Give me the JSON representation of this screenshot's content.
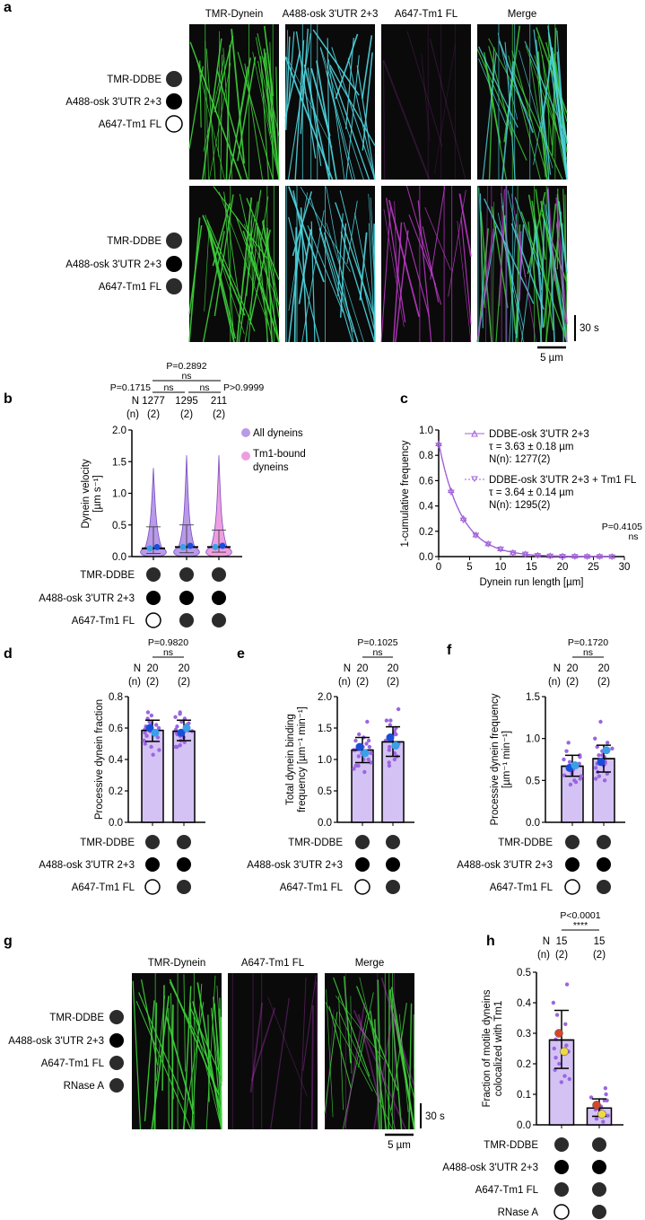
{
  "panels": {
    "a": "a",
    "b": "b",
    "c": "c",
    "d": "d",
    "e": "e",
    "f": "f",
    "g": "g",
    "h": "h"
  },
  "panel_a": {
    "channels": [
      "TMR-Dynein",
      "A488-osk 3'UTR 2+3",
      "A647-Tm1 FL",
      "Merge"
    ],
    "rows": [
      {
        "labels": [
          "TMR-DDBE",
          "A488-osk 3'UTR 2+3",
          "A647-Tm1 FL"
        ],
        "states": [
          "gray",
          "black",
          "open"
        ]
      },
      {
        "labels": [
          "TMR-DDBE",
          "A488-osk 3'UTR 2+3",
          "A647-Tm1 FL"
        ],
        "states": [
          "gray",
          "black",
          "gray"
        ]
      }
    ],
    "scale_time": "30 s",
    "scale_length": "5 µm",
    "colors": {
      "green": "#3ed23a",
      "cyan": "#4fd6e0",
      "magenta": "#c43ad0"
    }
  },
  "conditions_label": [
    "TMR-DDBE",
    "A488-osk 3'UTR 2+3",
    "A647-Tm1 FL",
    "RNase A"
  ],
  "chart_data": [
    {
      "id": "b",
      "type": "violin",
      "ylabel": "Dynein velocity",
      "ylabel2": "[µm s⁻¹]",
      "ylim": [
        0,
        2.0
      ],
      "yticks": [
        "0.0",
        "0.5",
        "1.0",
        "1.5",
        "2.0"
      ],
      "N": [
        "1277",
        "1295",
        "211"
      ],
      "n": [
        "(2)",
        "(2)",
        "(2)"
      ],
      "N_label": "N",
      "n_label": "(n)",
      "medians": [
        0.13,
        0.15,
        0.15
      ],
      "upper": [
        0.47,
        0.5,
        0.42
      ],
      "lower": [
        0.05,
        0.06,
        0.07
      ],
      "max": [
        1.4,
        1.6,
        1.6
      ],
      "violin_colors": [
        "#b89ae8",
        "#b89ae8",
        "#ee9ee0"
      ],
      "replicate_means": [
        [
          0.13,
          0.15
        ],
        [
          0.15,
          0.17
        ],
        [
          0.15,
          0.17
        ]
      ],
      "legend": [
        "All dyneins",
        "Tm1-bound dyneins"
      ],
      "stats": [
        {
          "p": "P=0.2892",
          "sig": "ns"
        },
        {
          "p": "P=0.1715",
          "sig": "ns"
        },
        {
          "p": "P>0.9999",
          "sig": "ns"
        }
      ],
      "conditions": [
        [
          "gray",
          "black",
          "open"
        ],
        [
          "gray",
          "black",
          "gray"
        ],
        [
          "gray",
          "black",
          "gray"
        ]
      ]
    },
    {
      "id": "c",
      "type": "line",
      "xlabel": "Dynein run length [µm]",
      "ylabel": "1-cumulative frequency",
      "xlim": [
        0,
        30
      ],
      "ylim": [
        0,
        1.0
      ],
      "xticks": [
        "0",
        "5",
        "10",
        "15",
        "20",
        "25",
        "30"
      ],
      "yticks": [
        "0.0",
        "0.2",
        "0.4",
        "0.6",
        "0.8",
        "1.0"
      ],
      "x": [
        0,
        2,
        4,
        6,
        8,
        10,
        12,
        14,
        16,
        18,
        20,
        22,
        24,
        26,
        28
      ],
      "series": [
        {
          "name": "DDBE-osk 3'UTR 2+3",
          "tau": "τ = 3.63 ± 0.18 µm",
          "N": "N(n): 1277(2)",
          "values": [
            0.89,
            0.52,
            0.3,
            0.17,
            0.1,
            0.06,
            0.03,
            0.02,
            0.01,
            0.005,
            0.003,
            0.002,
            0.001,
            0.001,
            0.0
          ]
        },
        {
          "name": "DDBE-osk 3'UTR 2+3 + Tm1 FL",
          "tau": "τ = 3.64 ± 0.14 µm",
          "N": "N(n): 1295(2)",
          "values": [
            0.88,
            0.51,
            0.29,
            0.17,
            0.1,
            0.06,
            0.03,
            0.02,
            0.01,
            0.005,
            0.003,
            0.002,
            0.001,
            0.001,
            0.0
          ]
        }
      ],
      "stats": {
        "p": "P=0.4105",
        "sig": "ns"
      },
      "color": "#a060d8"
    },
    {
      "id": "d",
      "type": "bar",
      "ylabel": "Processive dynein fraction",
      "ylim": [
        0,
        0.8
      ],
      "yticks": [
        "0.0",
        "0.2",
        "0.4",
        "0.6",
        "0.8"
      ],
      "N": [
        "20",
        "20"
      ],
      "n": [
        "(2)",
        "(2)"
      ],
      "values": [
        0.585,
        0.58
      ],
      "sd": [
        [
          0.515,
          0.65
        ],
        [
          0.52,
          0.65
        ]
      ],
      "points": [
        [
          0.7,
          0.68,
          0.66,
          0.64,
          0.63,
          0.62,
          0.61,
          0.6,
          0.6,
          0.59,
          0.58,
          0.57,
          0.56,
          0.55,
          0.54,
          0.52,
          0.5,
          0.48,
          0.46,
          0.43
        ],
        [
          0.7,
          0.69,
          0.67,
          0.66,
          0.64,
          0.63,
          0.62,
          0.61,
          0.6,
          0.59,
          0.58,
          0.57,
          0.56,
          0.55,
          0.54,
          0.52,
          0.51,
          0.49,
          0.48,
          0.48
        ]
      ],
      "reps": [
        [
          0.6,
          0.57
        ],
        [
          0.57,
          0.6
        ]
      ],
      "stats": {
        "p": "P=0.9820",
        "sig": "ns"
      },
      "conditions": [
        [
          "gray",
          "black",
          "open"
        ],
        [
          "gray",
          "black",
          "gray"
        ]
      ]
    },
    {
      "id": "e",
      "type": "bar",
      "ylabel": "Total dynein binding",
      "ylabel2": "frequency [µm⁻¹ min⁻¹]",
      "ylim": [
        0,
        2.0
      ],
      "yticks": [
        "0.0",
        "0.5",
        "1.0",
        "1.5",
        "2.0"
      ],
      "N": [
        "20",
        "20"
      ],
      "n": [
        "(2)",
        "(2)"
      ],
      "values": [
        1.15,
        1.28
      ],
      "sd": [
        [
          0.95,
          1.35
        ],
        [
          1.05,
          1.52
        ]
      ],
      "points": [
        [
          1.6,
          1.4,
          1.35,
          1.3,
          1.25,
          1.2,
          1.15,
          1.1,
          1.05,
          1.0,
          0.95,
          0.9,
          0.85,
          0.8,
          1.2,
          1.1,
          1.3,
          1.0,
          0.9,
          1.15
        ],
        [
          1.8,
          1.62,
          1.62,
          1.55,
          1.5,
          1.45,
          1.4,
          1.35,
          1.3,
          1.25,
          1.2,
          1.15,
          1.1,
          1.05,
          1.0,
          0.95,
          0.9,
          1.3,
          1.2,
          1.4
        ]
      ],
      "reps": [
        [
          1.2,
          1.1
        ],
        [
          1.35,
          1.22
        ]
      ],
      "stats": {
        "p": "P=0.1025",
        "sig": "ns"
      },
      "conditions": [
        [
          "gray",
          "black",
          "open"
        ],
        [
          "gray",
          "black",
          "gray"
        ]
      ]
    },
    {
      "id": "f",
      "type": "bar",
      "ylabel": "Processive dynein frequency",
      "ylabel2": "[µm⁻¹ min⁻¹]",
      "ylim": [
        0,
        1.5
      ],
      "yticks": [
        "0.0",
        "0.5",
        "1.0",
        "1.5"
      ],
      "N": [
        "20",
        "20"
      ],
      "n": [
        "(2)",
        "(2)"
      ],
      "values": [
        0.67,
        0.76
      ],
      "sd": [
        [
          0.55,
          0.8
        ],
        [
          0.6,
          0.92
        ]
      ],
      "points": [
        [
          0.95,
          0.85,
          0.8,
          0.78,
          0.75,
          0.72,
          0.7,
          0.68,
          0.66,
          0.65,
          0.63,
          0.6,
          0.58,
          0.56,
          0.55,
          0.52,
          0.5,
          0.48,
          0.45,
          0.7
        ],
        [
          1.2,
          1.0,
          0.95,
          0.9,
          0.88,
          0.85,
          0.8,
          0.78,
          0.75,
          0.72,
          0.7,
          0.68,
          0.65,
          0.6,
          0.58,
          0.55,
          0.52,
          0.5,
          0.7,
          0.8
        ]
      ],
      "reps": [
        [
          0.65,
          0.68
        ],
        [
          0.72,
          0.86
        ]
      ],
      "stats": {
        "p": "P=0.1720",
        "sig": "ns"
      },
      "conditions": [
        [
          "gray",
          "black",
          "open"
        ],
        [
          "gray",
          "black",
          "gray"
        ]
      ]
    },
    {
      "id": "h",
      "type": "bar",
      "ylabel": "Fraction of motile dyneins",
      "ylabel2": "colocalized with Tm1",
      "ylim": [
        0,
        0.5
      ],
      "yticks": [
        "0.0",
        "0.1",
        "0.2",
        "0.3",
        "0.4",
        "0.5"
      ],
      "N": [
        "15",
        "15"
      ],
      "n": [
        "(2)",
        "(2)"
      ],
      "values": [
        0.278,
        0.055
      ],
      "sd": [
        [
          0.185,
          0.375
        ],
        [
          0.028,
          0.085
        ]
      ],
      "points": [
        [
          0.46,
          0.4,
          0.36,
          0.33,
          0.3,
          0.28,
          0.26,
          0.24,
          0.22,
          0.2,
          0.18,
          0.16,
          0.15,
          0.14,
          0.25
        ],
        [
          0.12,
          0.1,
          0.09,
          0.08,
          0.07,
          0.06,
          0.05,
          0.04,
          0.03,
          0.02,
          0.01,
          0.03,
          0.05,
          0.06,
          0.08
        ]
      ],
      "reps": [
        [
          0.3,
          0.24
        ],
        [
          0.065,
          0.035
        ]
      ],
      "rep_colors": [
        "#d8452a",
        "#f0d840"
      ],
      "stats": {
        "p": "P<0.0001",
        "sig": "****"
      },
      "conditions": [
        [
          "gray",
          "black",
          "gray",
          "open"
        ],
        [
          "gray",
          "black",
          "gray",
          "gray"
        ]
      ]
    }
  ],
  "panel_g": {
    "channels": [
      "TMR-Dynein",
      "A647-Tm1 FL",
      "Merge"
    ],
    "labels": [
      "TMR-DDBE",
      "A488-osk 3'UTR 2+3",
      "A647-Tm1 FL",
      "RNase A"
    ],
    "states": [
      "gray",
      "black",
      "gray",
      "gray"
    ],
    "scale_time": "30 s",
    "scale_length": "5 µm"
  },
  "colors": {
    "bar_fill": "#d4c2f4",
    "point": "#9a66e0",
    "rep1": "#1a4ed8",
    "rep2": "#3aa0e8",
    "filled_gray": "#2b2b2b"
  }
}
